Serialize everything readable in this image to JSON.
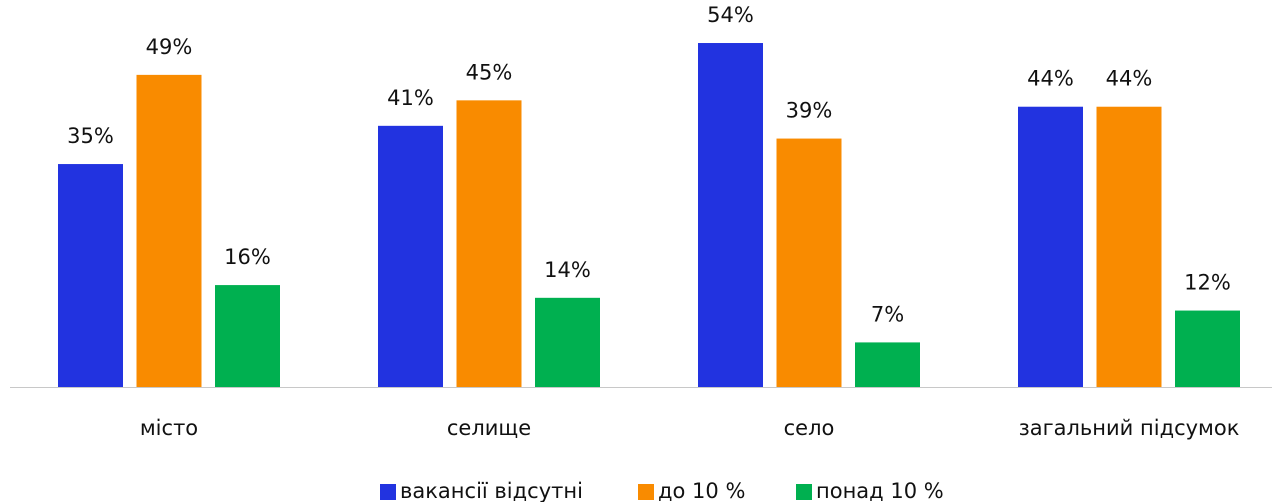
{
  "chart_data": {
    "type": "bar",
    "categories": [
      "місто",
      "селище",
      "село",
      "загальний підсумок"
    ],
    "series": [
      {
        "name": "вакансії відсутні",
        "color": "#2233e0",
        "values": [
          35,
          41,
          54,
          44
        ],
        "value_labels": [
          "35%",
          "41%",
          "54%",
          "44%"
        ]
      },
      {
        "name": "до 10 %",
        "color": "#f98b00",
        "values": [
          49,
          45,
          39,
          44
        ],
        "value_labels": [
          "49%",
          "45%",
          "39%",
          "44%"
        ]
      },
      {
        "name": "понад 10 %",
        "color": "#00b050",
        "values": [
          16,
          14,
          7,
          12
        ],
        "value_labels": [
          "16%",
          "14%",
          "7%",
          "12%"
        ]
      }
    ]
  }
}
